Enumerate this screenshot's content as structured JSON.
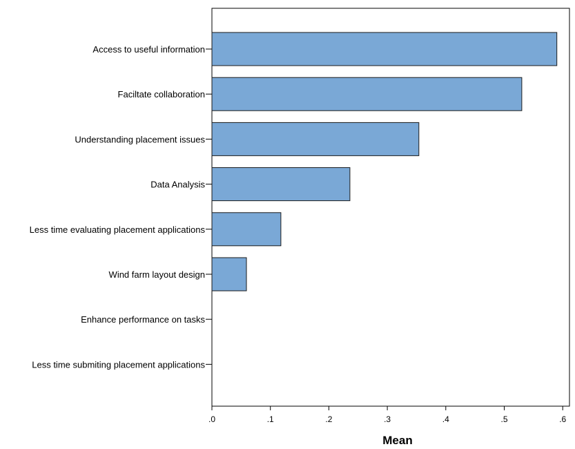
{
  "chart_data": {
    "type": "bar",
    "orientation": "horizontal",
    "categories": [
      "Access to useful information",
      "Faciltate collaboration",
      "Understanding placement issues",
      "Data Analysis",
      "Less time evaluating placement applications",
      "Wind farm layout design",
      "Enhance performance on tasks",
      "Less time submiting placement applications"
    ],
    "values": [
      0.59,
      0.53,
      0.354,
      0.236,
      0.118,
      0.059,
      0,
      0
    ],
    "xlabel": "Mean",
    "ylabel": "",
    "xlim": [
      0,
      0.62
    ],
    "ticks": [
      0,
      0.1,
      0.2,
      0.3,
      0.4,
      0.5,
      0.6
    ],
    "tick_labels": [
      ".0",
      ".1",
      ".2",
      ".3",
      ".4",
      ".5",
      ".6"
    ],
    "grid": false,
    "colors": {
      "bar_fill": "#7aa8d6",
      "bar_stroke": "#1a1a1a",
      "axis": "#000000"
    }
  }
}
